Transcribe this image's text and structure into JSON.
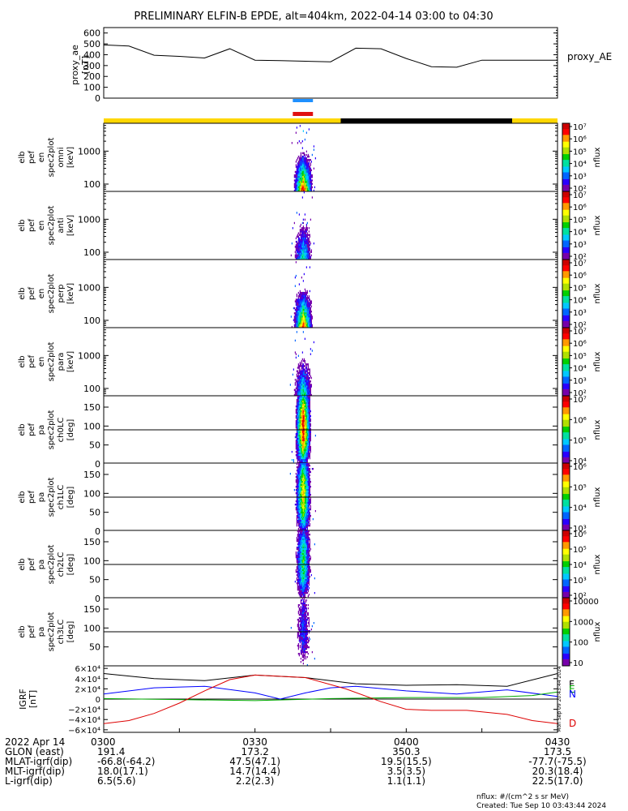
{
  "title": "PRELIMINARY ELFIN-B EPDE, alt=404km, 2022-04-14 03:00 to 04:30",
  "colors": {
    "ae_line": "#000000",
    "marker_blue": "#1e90ff",
    "marker_red": "#e01010",
    "orbit_sunlit": "#ffd700",
    "orbit_shadow": "#000000",
    "igrf_f": "#000000",
    "igrf_n": "#0000ff",
    "igrf_e": "#00aa00",
    "igrf_d": "#dd0000"
  },
  "colormap": [
    "#ffffff",
    "#ffffff",
    "#7700aa",
    "#2a00ff",
    "#0066ff",
    "#00c8ff",
    "#00e0a0",
    "#00d000",
    "#b0e000",
    "#ffff00",
    "#ff9900",
    "#ff0000",
    "#cc0000"
  ],
  "proxy_ae": {
    "ylabel": [
      "proxy_ae",
      "[nT]"
    ],
    "yticks": [
      "0",
      "100",
      "200",
      "300",
      "400",
      "500",
      "600"
    ],
    "ylim": [
      0,
      650
    ],
    "legend": "proxy_AE",
    "series_t": [
      0,
      5,
      10,
      15,
      20,
      25,
      30,
      35,
      40,
      45,
      50,
      55,
      60,
      65,
      70,
      75,
      80,
      85,
      90
    ],
    "series_v": [
      490,
      480,
      395,
      385,
      370,
      455,
      350,
      345,
      340,
      335,
      460,
      455,
      365,
      290,
      285,
      350,
      350,
      350,
      350
    ]
  },
  "orbit_bar": {
    "segments": [
      {
        "t0": 0,
        "t1": 47,
        "state": "sunlit"
      },
      {
        "t0": 47,
        "t1": 81,
        "state": "shadow"
      },
      {
        "t0": 81,
        "t1": 90,
        "state": "sunlit"
      }
    ]
  },
  "science_zone_markers": {
    "t0": 37.5,
    "t1": 41.5
  },
  "spectrogram_panels": [
    {
      "ylabel": [
        "elb",
        "pef",
        "en",
        "spec2plot",
        "omni",
        "[keV]"
      ],
      "yticks": [
        "100",
        "1000"
      ],
      "log": true,
      "ylim": [
        60,
        7000
      ],
      "cbar_ticks": [
        "10²",
        "10³",
        "10⁴",
        "10⁵",
        "10⁶",
        "10⁷"
      ],
      "cbar_log": [
        2,
        7
      ],
      "cbar_label": "nflux",
      "intensity": 1.0,
      "kind": "energy"
    },
    {
      "ylabel": [
        "elb",
        "pef",
        "en",
        "spec2plot",
        "anti",
        "[keV]"
      ],
      "yticks": [
        "100",
        "1000"
      ],
      "log": true,
      "ylim": [
        60,
        7000
      ],
      "cbar_ticks": [
        "10²",
        "10³",
        "10⁴",
        "10⁵",
        "10⁶",
        "10⁷"
      ],
      "cbar_log": [
        2,
        7
      ],
      "cbar_label": "nflux",
      "intensity": 0.55,
      "kind": "energy"
    },
    {
      "ylabel": [
        "elb",
        "pef",
        "en",
        "spec2plot",
        "perp",
        "[keV]"
      ],
      "yticks": [
        "100",
        "1000"
      ],
      "log": true,
      "ylim": [
        60,
        7000
      ],
      "cbar_ticks": [
        "10²",
        "10³",
        "10⁴",
        "10⁵",
        "10⁶",
        "10⁷"
      ],
      "cbar_log": [
        2,
        7
      ],
      "cbar_label": "nflux",
      "intensity": 0.95,
      "kind": "energy"
    },
    {
      "ylabel": [
        "elb",
        "pef",
        "en",
        "spec2plot",
        "para",
        "[keV]"
      ],
      "yticks": [
        "100",
        "1000"
      ],
      "log": true,
      "ylim": [
        60,
        7000
      ],
      "cbar_ticks": [
        "10²",
        "10³",
        "10⁴",
        "10⁵",
        "10⁶",
        "10⁷"
      ],
      "cbar_log": [
        2,
        7
      ],
      "cbar_label": "nflux",
      "intensity": 0.6,
      "kind": "energy"
    },
    {
      "ylabel": [
        "elb",
        "pef",
        "pa",
        "spec2plot",
        "ch0LC",
        "[deg]"
      ],
      "yticks": [
        "0",
        "50",
        "100",
        "150"
      ],
      "log": false,
      "ylim": [
        0,
        180
      ],
      "cbar_ticks": [
        "10⁴",
        "10⁵",
        "10⁶",
        "10⁷"
      ],
      "cbar_log": [
        3.5,
        7
      ],
      "cbar_label": "nflux",
      "intensity": 1.0,
      "kind": "pa"
    },
    {
      "ylabel": [
        "elb",
        "pef",
        "pa",
        "spec2plot",
        "ch1LC",
        "[deg]"
      ],
      "yticks": [
        "0",
        "50",
        "100",
        "150"
      ],
      "log": false,
      "ylim": [
        0,
        180
      ],
      "cbar_ticks": [
        "10³",
        "10⁴",
        "10⁵",
        "10⁶"
      ],
      "cbar_log": [
        2.6,
        6.5
      ],
      "cbar_label": "nflux",
      "intensity": 0.8,
      "kind": "pa"
    },
    {
      "ylabel": [
        "elb",
        "pef",
        "pa",
        "spec2plot",
        "ch2LC",
        "[deg]"
      ],
      "yticks": [
        "0",
        "50",
        "100",
        "150"
      ],
      "log": false,
      "ylim": [
        0,
        180
      ],
      "cbar_ticks": [
        "10²",
        "10³",
        "10⁴",
        "10⁵",
        "10⁶"
      ],
      "cbar_log": [
        1.8,
        6.1
      ],
      "cbar_label": "nflux",
      "intensity": 0.6,
      "kind": "pa"
    },
    {
      "ylabel": [
        "elb",
        "pef",
        "pa",
        "spec2plot",
        "ch3LC",
        "[deg]"
      ],
      "yticks": [
        "50",
        "100",
        "150"
      ],
      "log": false,
      "ylim": [
        0,
        180
      ],
      "cbar_ticks": [
        "10",
        "100",
        "1000",
        "10000"
      ],
      "cbar_log": [
        1,
        4.6
      ],
      "cbar_label": "nflux",
      "intensity": 0.3,
      "kind": "pa"
    }
  ],
  "igrf": {
    "ylabel": [
      "IGRF",
      "[nT]"
    ],
    "yticks": [
      "−6×10⁴",
      "−4×10⁴",
      "−2×10⁴",
      "0",
      "2×10⁴",
      "4×10⁴",
      "6×10⁴"
    ],
    "ylim": [
      -65000,
      65000
    ],
    "legend": [
      "F",
      "E",
      "N",
      "D"
    ],
    "side_stamp": "Mon Sep 09 20:43:44 2024",
    "series": {
      "F": {
        "t": [
          0,
          10,
          20,
          30,
          40,
          50,
          60,
          70,
          80,
          90
        ],
        "v": [
          50000,
          40000,
          36000,
          47000,
          42000,
          30000,
          27000,
          28000,
          25000,
          50000
        ]
      },
      "N": {
        "t": [
          0,
          10,
          20,
          30,
          35,
          40,
          45,
          50,
          60,
          70,
          80,
          90
        ],
        "v": [
          10000,
          22000,
          25000,
          12000,
          0,
          12000,
          22000,
          25000,
          16000,
          10000,
          18000,
          5000
        ]
      },
      "E": {
        "t": [
          0,
          15,
          30,
          45,
          60,
          75,
          85,
          90
        ],
        "v": [
          1000,
          -1000,
          -3000,
          1000,
          3000,
          3000,
          7000,
          14000
        ]
      },
      "D": {
        "t": [
          0,
          5,
          10,
          15,
          20,
          25,
          30,
          40,
          48,
          55,
          60,
          65,
          72,
          80,
          85,
          90
        ],
        "v": [
          -48000,
          -42000,
          -28000,
          -8000,
          16000,
          38000,
          47000,
          42000,
          20000,
          -5000,
          -20000,
          -22000,
          -22000,
          -30000,
          -42000,
          -48000
        ]
      }
    }
  },
  "time_axis": {
    "rows": [
      {
        "label": "2022 Apr 14",
        "values": [
          "0300",
          "0330",
          "0400",
          "0430"
        ]
      },
      {
        "label": "GLON (east)",
        "values": [
          "191.4",
          "173.2",
          "350.3",
          "173.5"
        ]
      },
      {
        "label": "MLAT-igrf(dip)",
        "values": [
          "-66.8(-64.2)",
          "47.5(47.1)",
          "19.5(15.5)",
          "-77.7(-75.5)"
        ]
      },
      {
        "label": "MLT-igrf(dip)",
        "values": [
          "18.0(17.1)",
          "14.7(14.4)",
          "3.5(3.5)",
          "20.3(18.4)"
        ]
      },
      {
        "label": "L-igrf(dip)",
        "values": [
          "6.5(5.6)",
          "2.2(2.3)",
          "1.1(1.1)",
          "22.5(17.0)"
        ]
      }
    ]
  },
  "footer": {
    "units": "nflux: #/(cm^2 s sr MeV)",
    "created": "Created: Tue Sep 10 03:43:44 2024"
  }
}
